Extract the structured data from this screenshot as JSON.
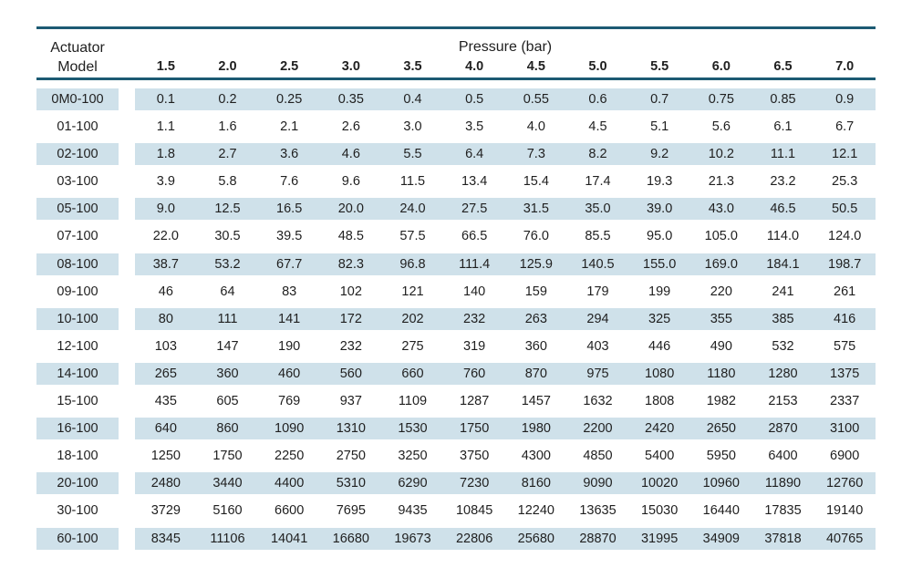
{
  "table": {
    "model_header": [
      "Actuator",
      "Model"
    ],
    "pressure_header": "Pressure (bar)",
    "pressures": [
      "1.5",
      "2.0",
      "2.5",
      "3.0",
      "3.5",
      "4.0",
      "4.5",
      "5.0",
      "5.5",
      "6.0",
      "6.5",
      "7.0"
    ],
    "rows": [
      {
        "model": "0M0-100",
        "values": [
          "0.1",
          "0.2",
          "0.25",
          "0.35",
          "0.4",
          "0.5",
          "0.55",
          "0.6",
          "0.7",
          "0.75",
          "0.85",
          "0.9"
        ]
      },
      {
        "model": "01-100",
        "values": [
          "1.1",
          "1.6",
          "2.1",
          "2.6",
          "3.0",
          "3.5",
          "4.0",
          "4.5",
          "5.1",
          "5.6",
          "6.1",
          "6.7"
        ]
      },
      {
        "model": "02-100",
        "values": [
          "1.8",
          "2.7",
          "3.6",
          "4.6",
          "5.5",
          "6.4",
          "7.3",
          "8.2",
          "9.2",
          "10.2",
          "11.1",
          "12.1"
        ]
      },
      {
        "model": "03-100",
        "values": [
          "3.9",
          "5.8",
          "7.6",
          "9.6",
          "11.5",
          "13.4",
          "15.4",
          "17.4",
          "19.3",
          "21.3",
          "23.2",
          "25.3"
        ]
      },
      {
        "model": "05-100",
        "values": [
          "9.0",
          "12.5",
          "16.5",
          "20.0",
          "24.0",
          "27.5",
          "31.5",
          "35.0",
          "39.0",
          "43.0",
          "46.5",
          "50.5"
        ]
      },
      {
        "model": "07-100",
        "values": [
          "22.0",
          "30.5",
          "39.5",
          "48.5",
          "57.5",
          "66.5",
          "76.0",
          "85.5",
          "95.0",
          "105.0",
          "114.0",
          "124.0"
        ]
      },
      {
        "model": "08-100",
        "values": [
          "38.7",
          "53.2",
          "67.7",
          "82.3",
          "96.8",
          "111.4",
          "125.9",
          "140.5",
          "155.0",
          "169.0",
          "184.1",
          "198.7"
        ]
      },
      {
        "model": "09-100",
        "values": [
          "46",
          "64",
          "83",
          "102",
          "121",
          "140",
          "159",
          "179",
          "199",
          "220",
          "241",
          "261"
        ]
      },
      {
        "model": "10-100",
        "values": [
          "80",
          "111",
          "141",
          "172",
          "202",
          "232",
          "263",
          "294",
          "325",
          "355",
          "385",
          "416"
        ]
      },
      {
        "model": "12-100",
        "values": [
          "103",
          "147",
          "190",
          "232",
          "275",
          "319",
          "360",
          "403",
          "446",
          "490",
          "532",
          "575"
        ]
      },
      {
        "model": "14-100",
        "values": [
          "265",
          "360",
          "460",
          "560",
          "660",
          "760",
          "870",
          "975",
          "1080",
          "1180",
          "1280",
          "1375"
        ]
      },
      {
        "model": "15-100",
        "values": [
          "435",
          "605",
          "769",
          "937",
          "1109",
          "1287",
          "1457",
          "1632",
          "1808",
          "1982",
          "2153",
          "2337"
        ]
      },
      {
        "model": "16-100",
        "values": [
          "640",
          "860",
          "1090",
          "1310",
          "1530",
          "1750",
          "1980",
          "2200",
          "2420",
          "2650",
          "2870",
          "3100"
        ]
      },
      {
        "model": "18-100",
        "values": [
          "1250",
          "1750",
          "2250",
          "2750",
          "3250",
          "3750",
          "4300",
          "4850",
          "5400",
          "5950",
          "6400",
          "6900"
        ]
      },
      {
        "model": "20-100",
        "values": [
          "2480",
          "3440",
          "4400",
          "5310",
          "6290",
          "7230",
          "8160",
          "9090",
          "10020",
          "10960",
          "11890",
          "12760"
        ]
      },
      {
        "model": "30-100",
        "values": [
          "3729",
          "5160",
          "6600",
          "7695",
          "9435",
          "10845",
          "12240",
          "13635",
          "15030",
          "16440",
          "17835",
          "19140"
        ]
      },
      {
        "model": "60-100",
        "values": [
          "8345",
          "11106",
          "14041",
          "16680",
          "19673",
          "22806",
          "25680",
          "28870",
          "31995",
          "34909",
          "37818",
          "40765"
        ]
      }
    ]
  },
  "colors": {
    "rule": "#1c5a73",
    "row_shade": "#cfe1ea",
    "text": "#1f1f1f"
  }
}
